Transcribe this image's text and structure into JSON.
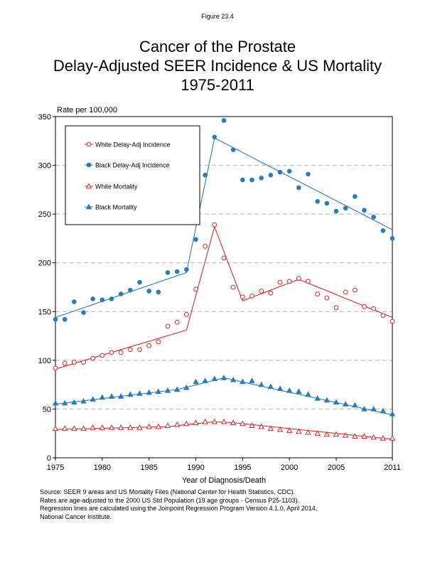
{
  "figure_label": "Figure 23.4",
  "title_lines": [
    "Cancer of the Prostate",
    "Delay-Adjusted SEER Incidence & US Mortality",
    "1975-2011"
  ],
  "footnote_lines": [
    "Source: SEER 9 areas and US Mortality Files (National Center for Health Statistics, CDC).",
    "Rates are age-adjusted to the 2000 US Std Population (19 age groups - Census P25-1103).",
    "Regression lines are calculated using the Joinpoint Regression Program Version 4.1.0, April 2014,",
    "National Cancer Institute."
  ],
  "colors": {
    "red": "#d62728",
    "blue": "#2b7bba",
    "grid": "#b0b0b0"
  },
  "chart_data": {
    "type": "scatter",
    "title": "Cancer of the Prostate Delay-Adjusted SEER Incidence & US Mortality 1975-2011",
    "ylabel": "Rate per 100,000",
    "xlabel": "Year of Diagnosis/Death",
    "xlim": [
      1975,
      2011
    ],
    "ylim": [
      0,
      350
    ],
    "x_ticks": [
      1975,
      1980,
      1985,
      1990,
      1995,
      2000,
      2005,
      2011
    ],
    "y_ticks": [
      0,
      50,
      100,
      150,
      200,
      250,
      300,
      350
    ],
    "grid": "horizontal dashed",
    "legend_position": "top-left",
    "x": [
      1975,
      1976,
      1977,
      1978,
      1979,
      1980,
      1981,
      1982,
      1983,
      1984,
      1985,
      1986,
      1987,
      1988,
      1989,
      1990,
      1991,
      1992,
      1993,
      1994,
      1995,
      1996,
      1997,
      1998,
      1999,
      2000,
      2001,
      2002,
      2003,
      2004,
      2005,
      2006,
      2007,
      2008,
      2009,
      2010,
      2011
    ],
    "series": [
      {
        "name": "White Delay-Adj Incidence",
        "marker": "open-circle",
        "color": "red",
        "values": [
          92,
          97,
          98,
          98,
          102,
          105,
          108,
          108,
          111,
          111,
          115,
          119,
          135,
          139,
          147,
          173,
          217,
          239,
          205,
          175,
          165,
          166,
          171,
          169,
          180,
          181,
          184,
          181,
          168,
          164,
          154,
          170,
          172,
          155,
          153,
          146,
          140
        ],
        "trend": {
          "x": [
            1975,
            1989,
            1992,
            1995,
            2001,
            2011
          ],
          "y": [
            91,
            131,
            237,
            161,
            183,
            144
          ]
        }
      },
      {
        "name": "Black Delay-Adj Incidence",
        "marker": "filled-circle",
        "color": "blue",
        "values": [
          142,
          142,
          160,
          149,
          163,
          162,
          163,
          168,
          172,
          180,
          171,
          170,
          190,
          191,
          193,
          224,
          290,
          329,
          346,
          316,
          285,
          285,
          287,
          290,
          293,
          294,
          277,
          291,
          263,
          261,
          253,
          256,
          268,
          254,
          247,
          233,
          225
        ],
        "trend": {
          "x": [
            1975,
            1989,
            1992,
            2011
          ],
          "y": [
            144,
            190,
            328,
            234
          ]
        }
      },
      {
        "name": "White Mortality",
        "marker": "open-triangle",
        "color": "red",
        "values": [
          30,
          30,
          30,
          30,
          31,
          31,
          31,
          31,
          31,
          31,
          32,
          32,
          33,
          34,
          35,
          36,
          37,
          37,
          37,
          36,
          35,
          33,
          32,
          30,
          29,
          28,
          27,
          26,
          25,
          24,
          24,
          23,
          22,
          22,
          21,
          20,
          20
        ],
        "trend": {
          "x": [
            1975,
            1987,
            1992,
            1994,
            2011
          ],
          "y": [
            29,
            32,
            37,
            36,
            19
          ]
        }
      },
      {
        "name": "Black Mortality",
        "marker": "filled-triangle",
        "color": "blue",
        "values": [
          56,
          56,
          57,
          58,
          60,
          62,
          63,
          63,
          65,
          66,
          67,
          68,
          69,
          70,
          72,
          78,
          79,
          81,
          82,
          80,
          78,
          79,
          75,
          73,
          71,
          69,
          68,
          65,
          61,
          59,
          57,
          55,
          54,
          50,
          50,
          48,
          45
        ],
        "trend": {
          "x": [
            1975,
            1988,
            1993,
            2011
          ],
          "y": [
            55,
            70,
            82,
            44
          ]
        }
      }
    ]
  }
}
